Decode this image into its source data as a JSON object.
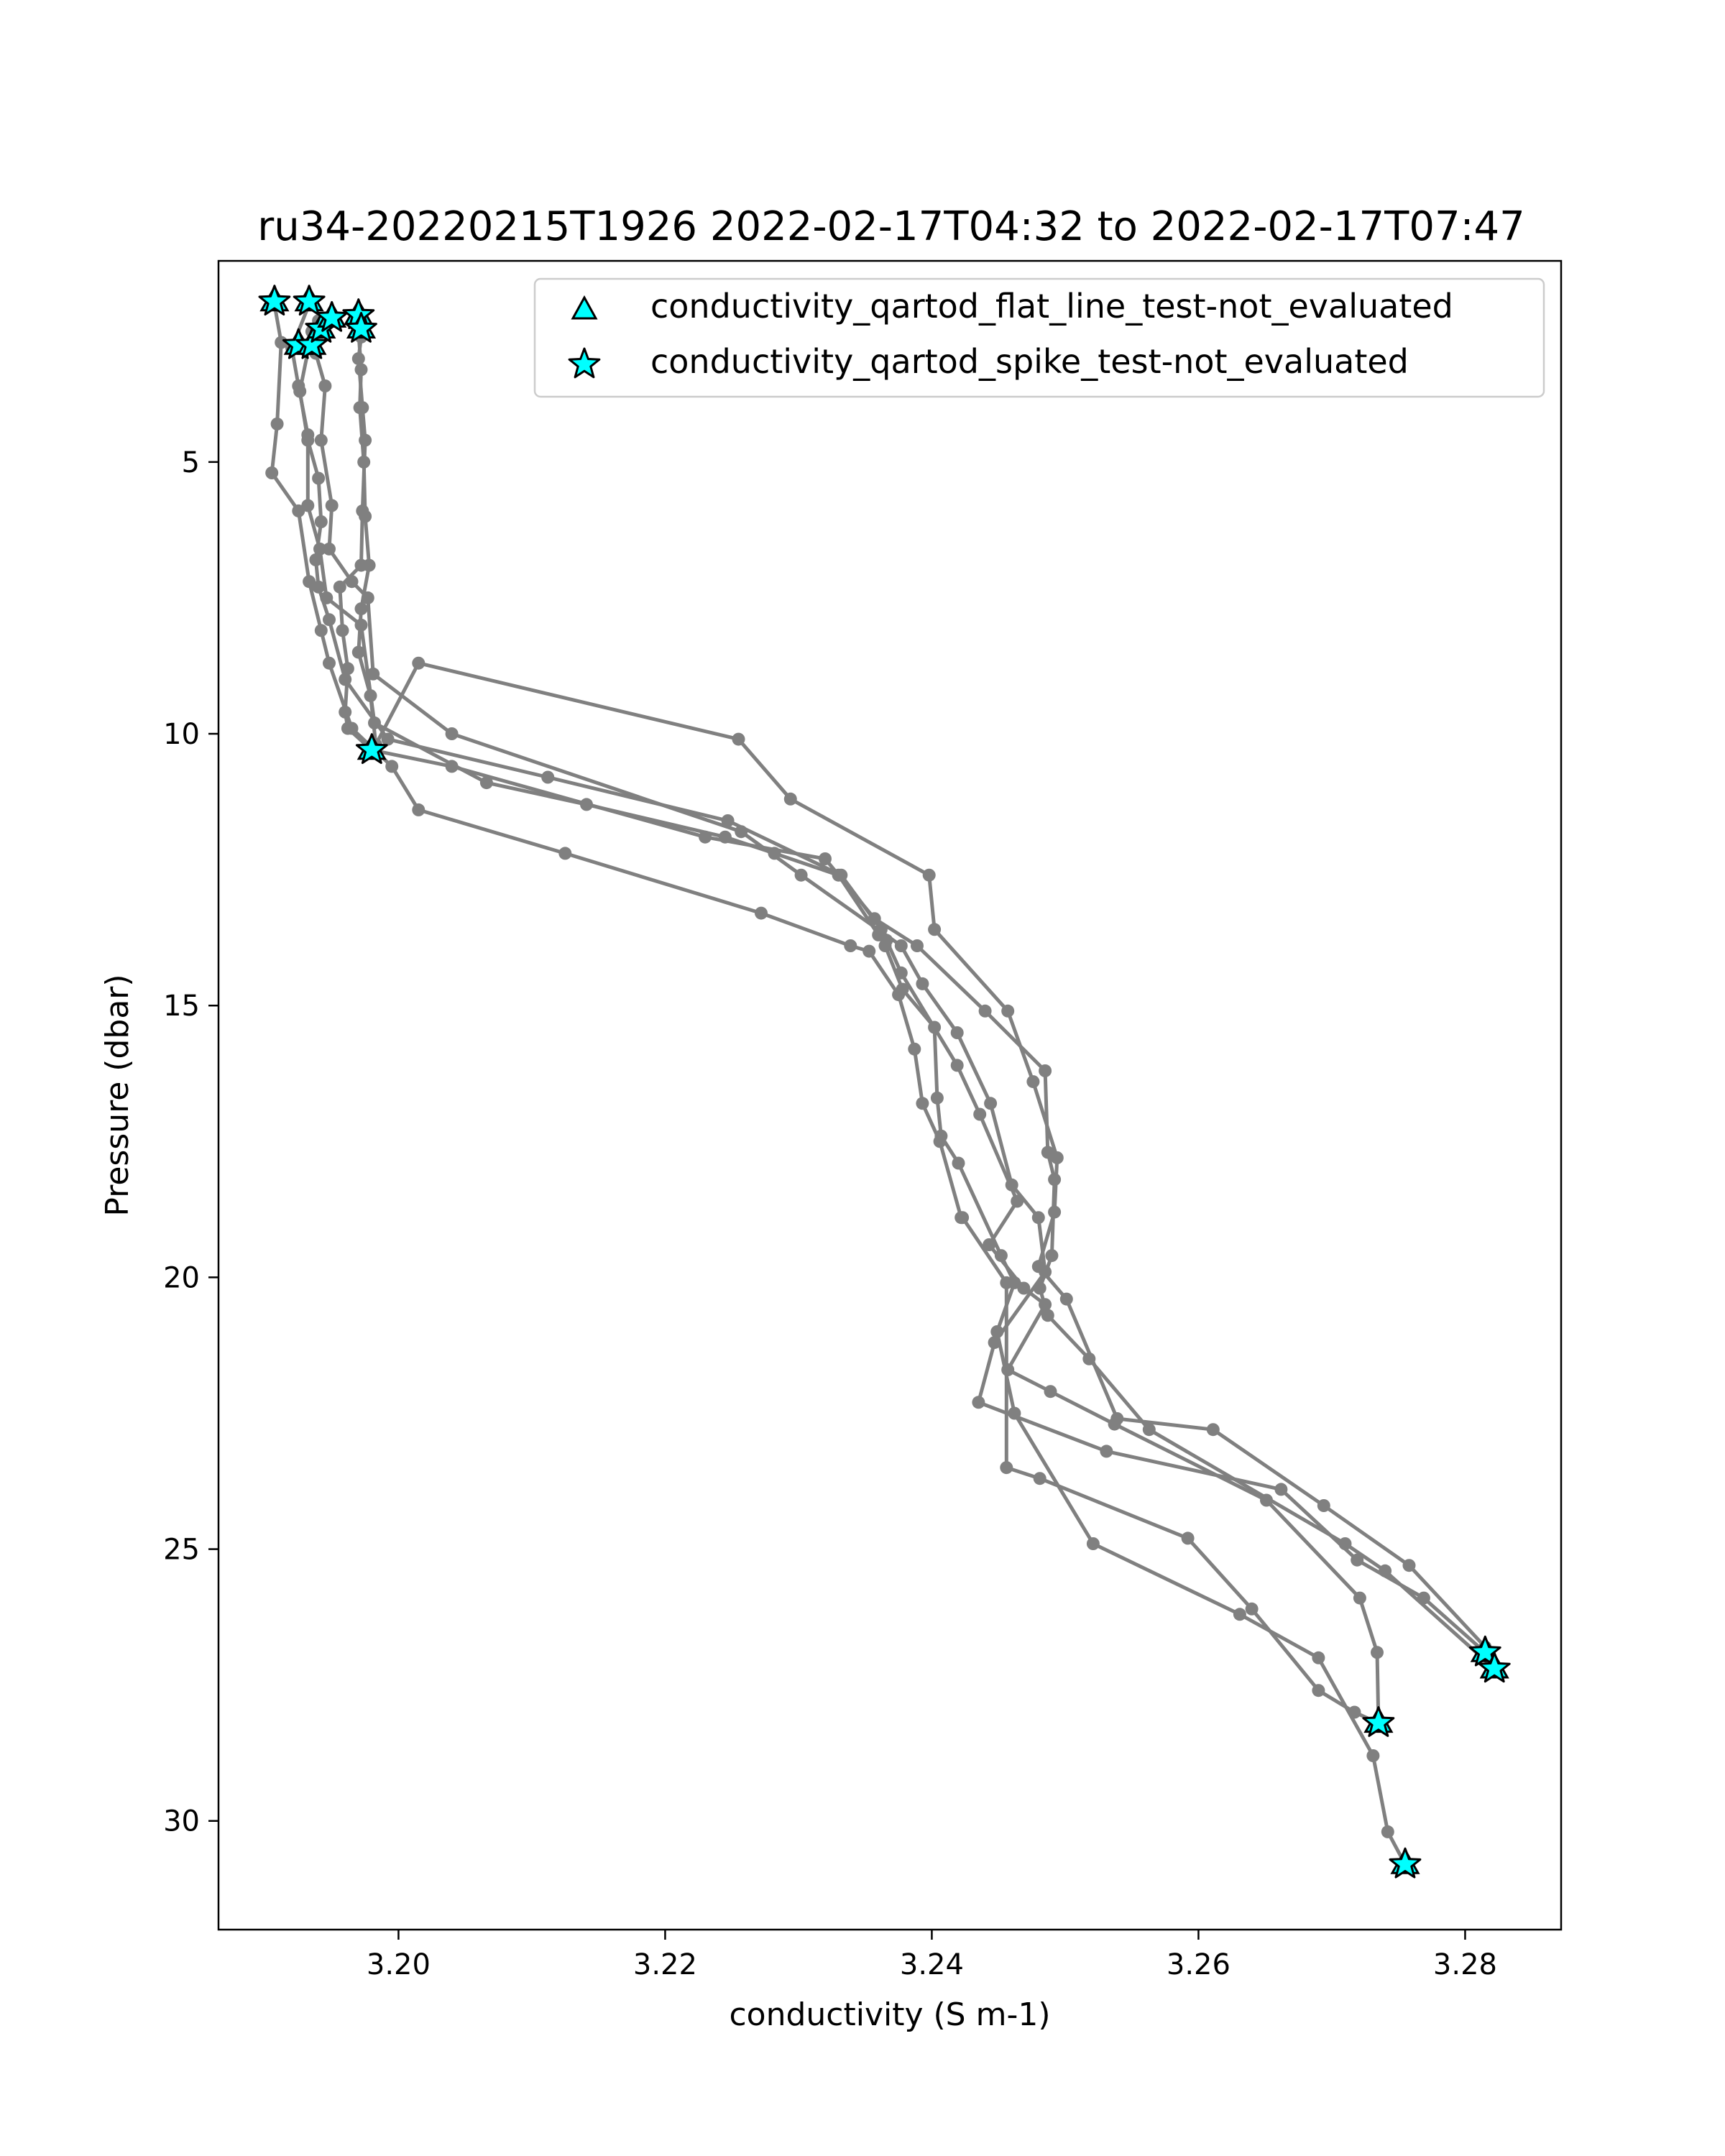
{
  "chart_data": {
    "type": "line",
    "title": "ru34-20220215T1926 2022-02-17T04:32 to 2022-02-17T07:47",
    "xlabel": "conductivity (S m-1)",
    "ylabel": "Pressure (dbar)",
    "xlim": [
      3.1865,
      3.2872
    ],
    "ylim": [
      32.0,
      1.3
    ],
    "y_inverted": true,
    "grid": false,
    "legend_position": "top-right",
    "xticks": [
      3.2,
      3.22,
      3.24,
      3.26,
      3.28
    ],
    "xtick_labels": [
      "3.20",
      "3.22",
      "3.24",
      "3.26",
      "3.28"
    ],
    "yticks": [
      5,
      10,
      15,
      20,
      25,
      30
    ],
    "ytick_labels": [
      "5",
      "10",
      "15",
      "20",
      "25",
      "30"
    ],
    "line_color": "#808080",
    "marker_color": "#00ffff",
    "legend": [
      {
        "label": "conductivity_qartod_flat_line_test-not_evaluated",
        "marker": "triangle"
      },
      {
        "label": "conductivity_qartod_spike_test-not_evaluated",
        "marker": "star"
      }
    ],
    "profiles": [
      {
        "x": [
          3.1907,
          3.1912,
          3.1909,
          3.1905,
          3.1925,
          3.1933,
          3.1942,
          3.1948,
          3.1965,
          3.1995,
          3.2015,
          3.2125,
          3.2272,
          3.2339,
          3.2353,
          3.2375,
          3.2387,
          3.2393,
          3.2406,
          3.2422,
          3.2423,
          3.2456,
          3.2456,
          3.2481,
          3.2592,
          3.264,
          3.269,
          3.2717,
          3.2735
        ],
        "y": [
          2.1,
          2.8,
          4.3,
          5.2,
          5.9,
          7.2,
          8.1,
          8.7,
          9.9,
          10.6,
          11.4,
          12.2,
          13.3,
          13.9,
          14.0,
          14.8,
          15.8,
          16.8,
          17.5,
          18.9,
          18.9,
          20.1,
          23.5,
          23.7,
          24.8,
          26.1,
          27.6,
          28.0,
          28.2
        ]
      },
      {
        "x": [
          3.1933,
          3.192,
          3.1925,
          3.1932,
          3.1932,
          3.1941,
          3.1946,
          3.1972,
          3.1982,
          3.2066,
          3.2141,
          3.2245,
          3.2282,
          3.233,
          3.236,
          3.2365,
          3.2378,
          3.2402,
          3.2404,
          3.2407,
          3.242,
          3.2452,
          3.2462,
          3.2449,
          3.2462,
          3.2521,
          3.2631,
          3.269,
          3.2731,
          3.2742,
          3.2755
        ],
        "y": [
          2.1,
          2.9,
          3.6,
          4.5,
          5.8,
          6.6,
          7.5,
          8.0,
          9.8,
          10.9,
          11.3,
          11.9,
          12.2,
          12.6,
          13.7,
          13.9,
          14.7,
          15.4,
          16.7,
          17.4,
          17.9,
          19.6,
          20.1,
          21.0,
          22.5,
          24.9,
          26.2,
          27.0,
          28.8,
          30.2,
          30.8
        ]
      },
      {
        "x": [
          3.1935,
          3.1926,
          3.1932,
          3.194,
          3.1942,
          3.1938,
          3.194,
          3.1948,
          3.196,
          3.1992,
          3.2112,
          3.2247,
          3.2332,
          3.2362,
          3.2366,
          3.2377,
          3.2419,
          3.2436,
          3.2464,
          3.2443,
          3.2469,
          3.2485,
          3.2457,
          3.2489,
          3.2537,
          3.2651,
          3.2721,
          3.2734,
          3.2735
        ],
        "y": [
          2.6,
          3.7,
          4.6,
          5.3,
          6.1,
          6.8,
          7.3,
          7.9,
          9.0,
          10.1,
          10.8,
          11.6,
          12.6,
          13.6,
          13.8,
          14.4,
          16.1,
          17.0,
          18.6,
          19.4,
          20.2,
          20.5,
          21.7,
          22.1,
          22.7,
          24.1,
          25.9,
          26.9,
          28.2
        ]
      },
      {
        "x": [
          3.194,
          3.1938,
          3.1945,
          3.1942,
          3.195,
          3.1948,
          3.1965,
          3.1977,
          3.1981,
          3.204,
          3.2257,
          3.2302,
          3.2377,
          3.2393,
          3.2419,
          3.2444,
          3.246,
          3.248,
          3.2485,
          3.2447,
          3.2435,
          3.2531,
          3.2662,
          3.2719,
          3.2769,
          3.2815
        ],
        "y": [
          2.4,
          3.0,
          3.6,
          4.6,
          5.8,
          6.6,
          7.2,
          7.5,
          8.9,
          10.0,
          11.8,
          12.6,
          13.9,
          14.6,
          15.5,
          16.8,
          18.3,
          18.9,
          19.9,
          21.2,
          22.3,
          23.2,
          23.9,
          25.2,
          25.9,
          26.9
        ]
      },
      {
        "x": [
          3.197,
          3.1972,
          3.197,
          3.1973,
          3.1975,
          3.1973,
          3.1972,
          3.1956,
          3.1958,
          3.1962,
          3.196,
          3.1962,
          3.198,
          3.204,
          3.223,
          3.232,
          3.2357,
          3.2389,
          3.244,
          3.2485,
          3.2487,
          3.2492,
          3.249,
          3.2481,
          3.2487,
          3.2518,
          3.2563,
          3.271,
          3.274,
          3.2822
        ],
        "y": [
          2.4,
          2.7,
          3.1,
          4.0,
          4.6,
          5.9,
          6.9,
          7.3,
          8.1,
          8.8,
          9.6,
          9.9,
          10.3,
          10.6,
          11.9,
          12.3,
          13.4,
          13.9,
          15.1,
          16.2,
          17.7,
          18.2,
          19.6,
          20.2,
          20.7,
          21.5,
          22.8,
          24.9,
          25.4,
          27.2
        ]
      },
      {
        "x": [
          3.197,
          3.1972,
          3.1971,
          3.1974,
          3.1975,
          3.1978,
          3.1972,
          3.197,
          3.1979,
          3.1983,
          3.2015,
          3.2255,
          3.2294,
          3.2398,
          3.2402,
          3.2457,
          3.2476,
          3.2494,
          3.2492,
          3.248,
          3.2501,
          3.2539,
          3.2611,
          3.2694,
          3.2758,
          3.2815
        ],
        "y": [
          2.6,
          3.3,
          4.0,
          5.0,
          6.0,
          6.9,
          7.7,
          8.5,
          9.3,
          10.2,
          8.7,
          10.1,
          11.2,
          12.6,
          13.6,
          15.1,
          16.4,
          17.8,
          18.8,
          19.8,
          20.4,
          22.6,
          22.8,
          24.2,
          25.3,
          26.8
        ]
      }
    ],
    "flag_points": [
      {
        "x": 3.1907,
        "y": 2.05
      },
      {
        "x": 3.1933,
        "y": 2.05
      },
      {
        "x": 3.1925,
        "y": 2.85
      },
      {
        "x": 3.1935,
        "y": 2.85
      },
      {
        "x": 3.1942,
        "y": 2.55
      },
      {
        "x": 3.195,
        "y": 2.35
      },
      {
        "x": 3.197,
        "y": 2.3
      },
      {
        "x": 3.1972,
        "y": 2.55
      },
      {
        "x": 3.198,
        "y": 10.3
      },
      {
        "x": 3.2735,
        "y": 28.2
      },
      {
        "x": 3.2755,
        "y": 30.8
      },
      {
        "x": 3.2815,
        "y": 26.9
      },
      {
        "x": 3.2822,
        "y": 27.2
      }
    ]
  }
}
